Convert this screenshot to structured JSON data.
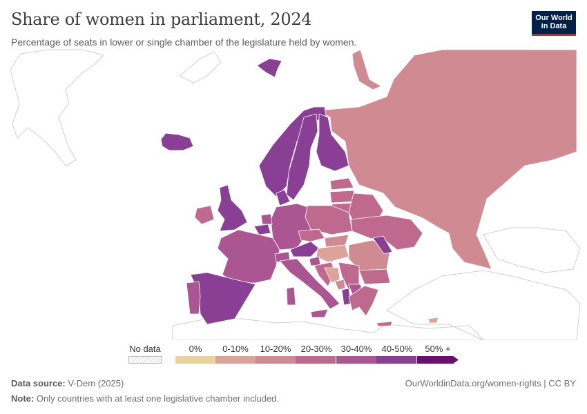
{
  "title": "Share of women in parliament, 2024",
  "subtitle": "Percentage of seats in lower or single chamber of the legislature held by women.",
  "logo": {
    "line1": "Our World",
    "line2": "in Data"
  },
  "legend": {
    "no_data": "No data",
    "bins": [
      {
        "label": "0%",
        "color": "#e8d39e"
      },
      {
        "label": "0-10%",
        "color": "#dda398"
      },
      {
        "label": "10-20%",
        "color": "#d08a91"
      },
      {
        "label": "20-30%",
        "color": "#c0698e"
      },
      {
        "label": "30-40%",
        "color": "#ab5692"
      },
      {
        "label": "40-50%",
        "color": "#893f94"
      },
      {
        "label": "50% +",
        "color": "#6a0f70"
      }
    ]
  },
  "footer": {
    "source_label": "Data source:",
    "source_value": "V-Dem (2025)",
    "url": "OurWorldinData.org/women-rights | CC BY",
    "note_label": "Note:",
    "note_value": "Only countries with at least one legislative chamber included."
  }
}
